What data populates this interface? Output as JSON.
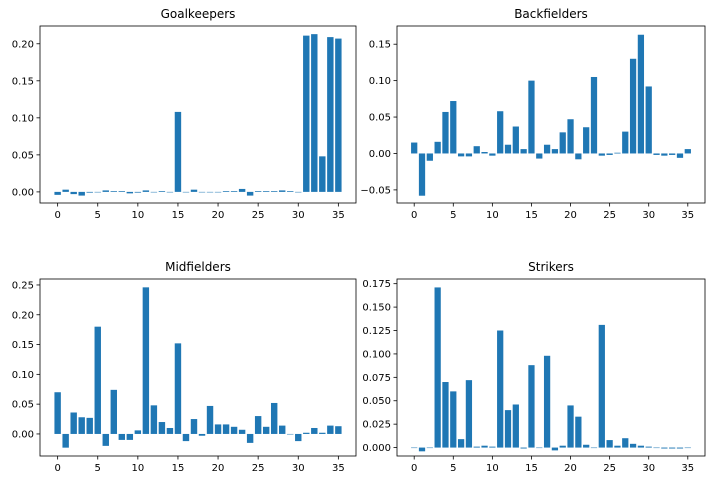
{
  "chart_data": [
    {
      "type": "bar",
      "title": "Goalkeepers",
      "color": "#1f77b4",
      "x": [
        0,
        1,
        2,
        3,
        4,
        5,
        6,
        7,
        8,
        9,
        10,
        11,
        12,
        13,
        14,
        15,
        16,
        17,
        18,
        19,
        20,
        21,
        22,
        23,
        24,
        25,
        26,
        27,
        28,
        29,
        30,
        31,
        32,
        33,
        34,
        35
      ],
      "values": [
        -0.004,
        0.003,
        -0.003,
        -0.005,
        -0.001,
        0,
        0.002,
        0.001,
        0.001,
        -0.002,
        -0.001,
        0.002,
        0,
        0.001,
        0,
        0.108,
        0,
        0.003,
        0,
        0,
        0,
        0.001,
        0.001,
        0.004,
        -0.005,
        0.001,
        0.001,
        0.001,
        0.002,
        0.001,
        0,
        0.211,
        0.213,
        0.048,
        0.209,
        0.207
      ],
      "xlim": [
        -2.2,
        37.2
      ],
      "ylim": [
        -0.015,
        0.224
      ],
      "xticks": [
        0,
        5,
        10,
        15,
        20,
        25,
        30,
        35
      ],
      "yticks": [
        0.0,
        0.05,
        0.1,
        0.15,
        0.2
      ],
      "ytick_labels": [
        "0.00",
        "0.05",
        "0.10",
        "0.15",
        "0.20"
      ]
    },
    {
      "type": "bar",
      "title": "Backfielders",
      "color": "#1f77b4",
      "x": [
        0,
        1,
        2,
        3,
        4,
        5,
        6,
        7,
        8,
        9,
        10,
        11,
        12,
        13,
        14,
        15,
        16,
        17,
        18,
        19,
        20,
        21,
        22,
        23,
        24,
        25,
        26,
        27,
        28,
        29,
        30,
        31,
        32,
        33,
        34,
        35
      ],
      "values": [
        0.015,
        -0.058,
        -0.01,
        0.016,
        0.057,
        0.072,
        -0.004,
        -0.004,
        0.01,
        0.002,
        -0.003,
        0.058,
        0.012,
        0.037,
        0.006,
        0.1,
        -0.007,
        0.012,
        0.006,
        0.029,
        0.047,
        -0.008,
        0.036,
        0.105,
        -0.003,
        -0.002,
        0.001,
        0.03,
        0.13,
        0.163,
        0.092,
        -0.002,
        -0.003,
        -0.002,
        -0.006,
        0.006
      ],
      "xlim": [
        -2.2,
        37.2
      ],
      "ylim": [
        -0.068,
        0.175
      ],
      "xticks": [
        0,
        5,
        10,
        15,
        20,
        25,
        30,
        35
      ],
      "yticks": [
        -0.05,
        0.0,
        0.05,
        0.1,
        0.15
      ],
      "ytick_labels": [
        "−0.05",
        "0.00",
        "0.05",
        "0.10",
        "0.15"
      ]
    },
    {
      "type": "bar",
      "title": "Midfielders",
      "color": "#1f77b4",
      "x": [
        0,
        1,
        2,
        3,
        4,
        5,
        6,
        7,
        8,
        9,
        10,
        11,
        12,
        13,
        14,
        15,
        16,
        17,
        18,
        19,
        20,
        21,
        22,
        23,
        24,
        25,
        26,
        27,
        28,
        29,
        30,
        31,
        32,
        33,
        34,
        35
      ],
      "values": [
        0.07,
        -0.023,
        0.036,
        0.028,
        0.027,
        0.18,
        -0.02,
        0.074,
        -0.01,
        -0.01,
        0.006,
        0.246,
        0.048,
        0.02,
        0.01,
        0.152,
        -0.012,
        0.025,
        -0.003,
        0.047,
        0.016,
        0.016,
        0.012,
        0.007,
        -0.015,
        0.03,
        0.012,
        0.052,
        0.014,
        0,
        -0.012,
        0.002,
        0.01,
        0.002,
        0.014,
        0.013
      ],
      "xlim": [
        -2.2,
        37.2
      ],
      "ylim": [
        -0.037,
        0.26
      ],
      "xticks": [
        0,
        5,
        10,
        15,
        20,
        25,
        30,
        35
      ],
      "yticks": [
        0.0,
        0.05,
        0.1,
        0.15,
        0.2,
        0.25
      ],
      "ytick_labels": [
        "0.00",
        "0.05",
        "0.10",
        "0.15",
        "0.20",
        "0.25"
      ]
    },
    {
      "type": "bar",
      "title": "Strikers",
      "color": "#1f77b4",
      "x": [
        0,
        1,
        2,
        3,
        4,
        5,
        6,
        7,
        8,
        9,
        10,
        11,
        12,
        13,
        14,
        15,
        16,
        17,
        18,
        19,
        20,
        21,
        22,
        23,
        24,
        25,
        26,
        27,
        28,
        29,
        30,
        31,
        32,
        33,
        34,
        35
      ],
      "values": [
        0,
        -0.004,
        0,
        0.171,
        0.07,
        0.06,
        0.009,
        0.072,
        0.001,
        0.002,
        0.001,
        0.125,
        0.04,
        0.046,
        -0.001,
        0.088,
        0,
        0.098,
        -0.003,
        0.002,
        0.045,
        0.033,
        0.003,
        0,
        0.131,
        0.008,
        0.002,
        0.01,
        0.004,
        0.002,
        0.001,
        0,
        -0.001,
        -0.001,
        -0.001,
        0
      ],
      "xlim": [
        -2.2,
        37.2
      ],
      "ylim": [
        -0.009,
        0.18
      ],
      "xticks": [
        0,
        5,
        10,
        15,
        20,
        25,
        30,
        35
      ],
      "yticks": [
        0.0,
        0.025,
        0.05,
        0.075,
        0.1,
        0.125,
        0.15,
        0.175
      ],
      "ytick_labels": [
        "0.000",
        "0.025",
        "0.050",
        "0.075",
        "0.100",
        "0.125",
        "0.150",
        "0.175"
      ]
    }
  ]
}
